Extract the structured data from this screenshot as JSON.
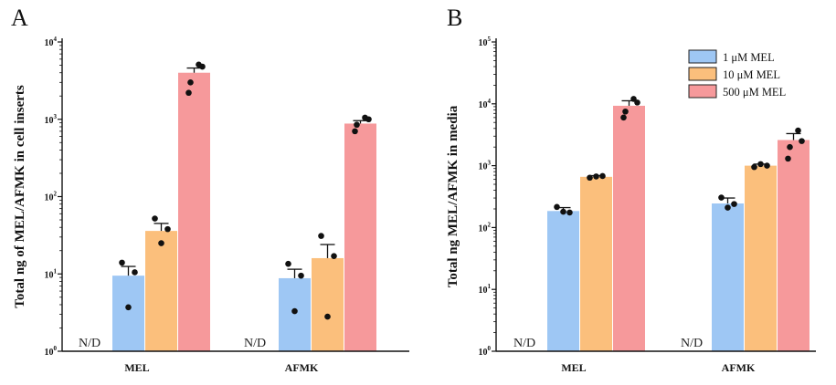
{
  "colors": {
    "s1": "#9ec7f4",
    "s2": "#fbbf7c",
    "s3": "#f6999b",
    "point": "#111111"
  },
  "chart_data": [
    {
      "type": "bar",
      "panel_label": "A",
      "ylabel": "Total ng of MEL/AFMK in cell inserts",
      "yscale": "log",
      "ylim": [
        1,
        10000
      ],
      "y_ticks": [
        {
          "base": "10",
          "exp": "0"
        },
        {
          "base": "10",
          "exp": "1"
        },
        {
          "base": "10",
          "exp": "2"
        },
        {
          "base": "10",
          "exp": "3"
        },
        {
          "base": "10",
          "exp": "4"
        }
      ],
      "categories": [
        "MEL",
        "AFMK"
      ],
      "nd_label": "N/D",
      "series": [
        {
          "name": "1 μM MEL",
          "values": [
            9.5,
            8.8
          ],
          "errors": [
            12.5,
            11.5
          ],
          "points": [
            [
              14,
              3.7,
              10.5
            ],
            [
              13.5,
              3.3,
              9.5
            ]
          ]
        },
        {
          "name": "10 μM MEL",
          "values": [
            36,
            16
          ],
          "errors": [
            45,
            24
          ],
          "points": [
            [
              52,
              25,
              38
            ],
            [
              31,
              2.8,
              17
            ]
          ]
        },
        {
          "name": "500 μM MEL",
          "values": [
            4000,
            880
          ],
          "errors": [
            4600,
            960
          ],
          "points": [
            [
              5100,
              4800,
              2200,
              3000
            ],
            [
              1050,
              1000,
              700,
              850
            ]
          ]
        }
      ]
    },
    {
      "type": "bar",
      "panel_label": "B",
      "ylabel": "Total ng MEL/AFMK in media",
      "yscale": "log",
      "ylim": [
        1,
        100000
      ],
      "y_ticks": [
        {
          "base": "10",
          "exp": "0"
        },
        {
          "base": "10",
          "exp": "1"
        },
        {
          "base": "10",
          "exp": "2"
        },
        {
          "base": "10",
          "exp": "3"
        },
        {
          "base": "10",
          "exp": "4"
        },
        {
          "base": "10",
          "exp": "5"
        }
      ],
      "categories": [
        "MEL",
        "AFMK"
      ],
      "nd_label": "N/D",
      "legend": {
        "position": "top-right"
      },
      "series": [
        {
          "name": "1 μM MEL",
          "values": [
            185,
            245
          ],
          "errors": [
            210,
            300
          ],
          "points": [
            [
              215,
              180,
              175
            ],
            [
              305,
              210,
              240
            ]
          ]
        },
        {
          "name": "10 μM MEL",
          "values": [
            660,
            1000
          ],
          "errors": [
            690,
            1060
          ],
          "points": [
            [
              640,
              670,
              680
            ],
            [
              950,
              1060,
              1000
            ]
          ]
        },
        {
          "name": "500 μM MEL",
          "values": [
            9300,
            2600
          ],
          "errors": [
            11200,
            3300
          ],
          "points": [
            [
              12000,
              10500,
              6000,
              7500
            ],
            [
              3700,
              2500,
              1300,
              2000
            ]
          ]
        }
      ]
    }
  ]
}
